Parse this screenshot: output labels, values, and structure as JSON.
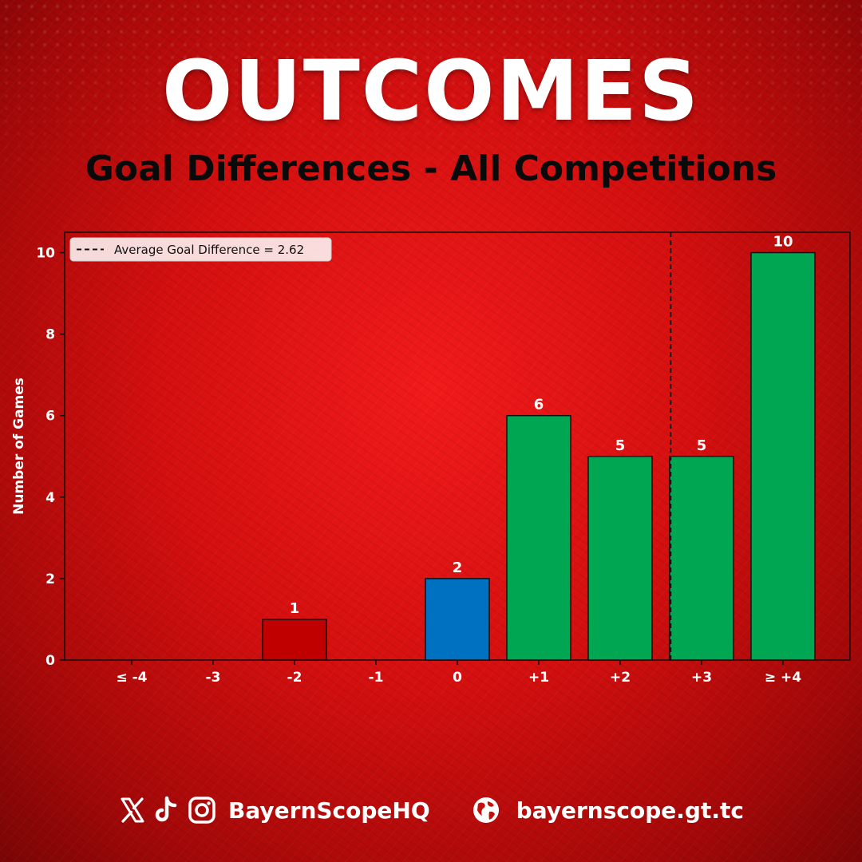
{
  "header": {
    "title": "OUTCOMES",
    "subtitle": "Goal Differences - All Competitions"
  },
  "chart_data": {
    "type": "bar",
    "ylabel": "Number of Games",
    "xlabel": "",
    "categories": [
      "≤ -4",
      "-3",
      "-2",
      "-1",
      "0",
      "+1",
      "+2",
      "+3",
      "≥ +4"
    ],
    "values": [
      0,
      0,
      1,
      0,
      2,
      6,
      5,
      5,
      10
    ],
    "bar_colors": [
      "#c00000",
      "#c00000",
      "#c00000",
      "#c00000",
      "#0070c0",
      "#00a651",
      "#00a651",
      "#00a651",
      "#00a651"
    ],
    "data_labels": [
      "",
      "",
      "1",
      "",
      "2",
      "6",
      "5",
      "5",
      "10"
    ],
    "ylim": [
      0,
      10.5
    ],
    "yticks": [
      0,
      2,
      4,
      6,
      8,
      10
    ],
    "average_line": {
      "x": 2.62,
      "style": "dashed",
      "label": "Average Goal Difference = 2.62"
    },
    "legend_position": "top-left",
    "grid": false
  },
  "footer": {
    "social_icons": [
      "x-icon",
      "tiktok-icon",
      "instagram-icon"
    ],
    "handle": "BayernScopeHQ",
    "globe_icon": "globe-icon",
    "website": "bayernscope.gt.tc"
  },
  "colors": {
    "background": "#e01010",
    "title": "#ffffff",
    "subtitle": "#0a0a0a",
    "negative": "#c00000",
    "draw": "#0070c0",
    "positive": "#00a651"
  }
}
